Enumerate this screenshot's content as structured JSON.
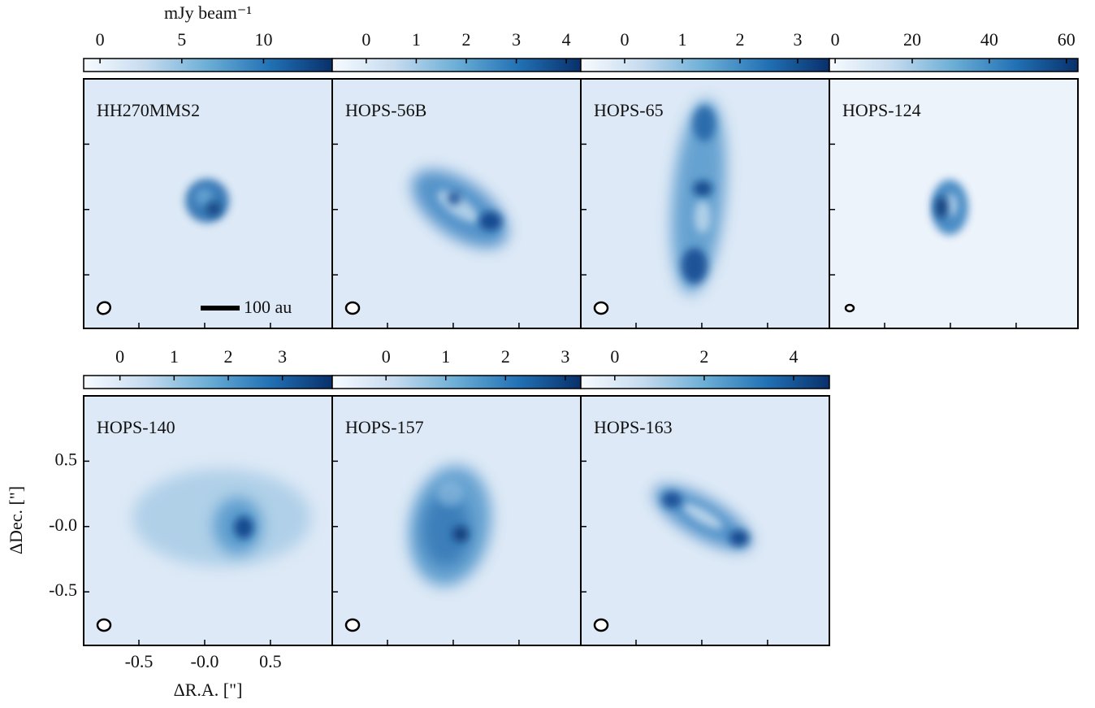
{
  "chart_data": {
    "type": "image-grid",
    "colorbar_label": "mJy beam⁻¹",
    "xlabel": "ΔR.A. [\"]",
    "ylabel": "ΔDec. [\"]",
    "xlim": [
      -0.92,
      0.97
    ],
    "ylim": [
      -0.91,
      1.0
    ],
    "xticks": [
      -0.5,
      {
        "value": 0,
        "label": "-0.0"
      },
      0.5
    ],
    "yticks": [
      0.5,
      {
        "value": 0,
        "label": "-0.0"
      },
      -0.5
    ],
    "colormap": [
      "#f7fbff",
      "#c6dbef",
      "#6baed6",
      "#2171b5",
      "#08306b"
    ],
    "panels": [
      {
        "title": "HH270MMS2",
        "clim": [
          -1.0,
          14.2
        ],
        "cticks": [
          0,
          5,
          10
        ],
        "scalebar": "100 au"
      },
      {
        "title": "HOPS-56B",
        "clim": [
          -0.68,
          4.29
        ],
        "cticks": [
          0,
          1,
          2,
          3,
          4
        ]
      },
      {
        "title": "HOPS-65",
        "clim": [
          -0.76,
          3.55
        ],
        "cticks": [
          0,
          1,
          2,
          3
        ]
      },
      {
        "title": "HOPS-124",
        "clim": [
          -1.5,
          63
        ],
        "cticks": [
          0,
          20,
          40,
          60
        ]
      },
      {
        "title": "HOPS-140",
        "clim": [
          -0.67,
          3.92
        ],
        "cticks": [
          0,
          1,
          2,
          3
        ]
      },
      {
        "title": "HOPS-157",
        "clim": [
          -0.9,
          3.26
        ],
        "cticks": [
          0,
          1,
          2,
          3
        ]
      },
      {
        "title": "HOPS-163",
        "clim": [
          -0.76,
          4.8
        ],
        "cticks": [
          0,
          2,
          4
        ]
      }
    ]
  }
}
